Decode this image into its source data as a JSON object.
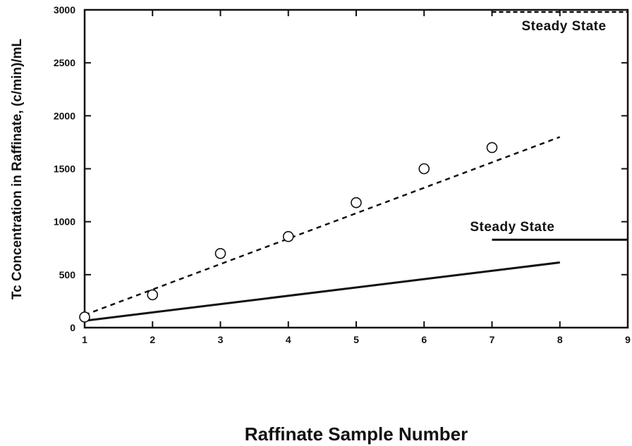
{
  "chart_data": {
    "type": "scatter",
    "title": "",
    "xlabel": "Raffinate Sample Number",
    "ylabel": "Tc Concentration in Raffinate, (c/min)/mL",
    "xlim": [
      1,
      9
    ],
    "ylim": [
      0,
      3000
    ],
    "xticks": [
      "1",
      "2",
      "3",
      "4",
      "5",
      "6",
      "7",
      "8",
      "9"
    ],
    "yticks": [
      "0",
      "500",
      "1000",
      "1500",
      "2000",
      "2500",
      "3000"
    ],
    "grid": false,
    "points": {
      "x": [
        1,
        2,
        3,
        4,
        5,
        6,
        7
      ],
      "y": [
        100,
        310,
        700,
        860,
        1180,
        1500,
        1700
      ]
    },
    "lines": [
      {
        "style": "dashed",
        "x": [
          1,
          8
        ],
        "y": [
          120,
          1800
        ]
      },
      {
        "style": "solid",
        "x": [
          1,
          8
        ],
        "y": [
          65,
          615
        ]
      }
    ],
    "steady_state_levels": [
      {
        "style": "dashed",
        "x": [
          7,
          9
        ],
        "y": 2980,
        "label": "Steady State"
      },
      {
        "style": "solid",
        "x": [
          7,
          9
        ],
        "y": 830,
        "label": "Steady State"
      }
    ]
  }
}
